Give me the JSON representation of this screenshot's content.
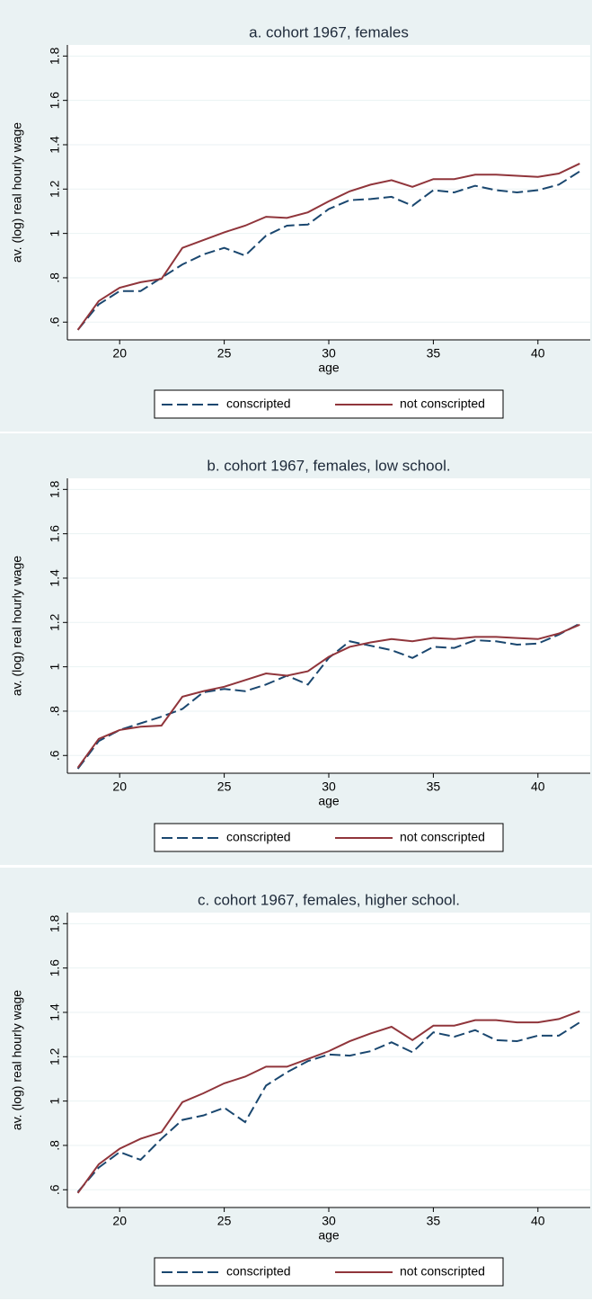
{
  "chart_data": [
    {
      "type": "line",
      "title": "a. cohort 1967, females",
      "xlabel": "age",
      "ylabel": "av. (log) real hourly wage",
      "x": [
        18,
        19,
        20,
        21,
        22,
        23,
        24,
        25,
        26,
        27,
        28,
        29,
        30,
        31,
        32,
        33,
        34,
        35,
        36,
        37,
        38,
        39,
        40,
        41,
        42
      ],
      "series": [
        {
          "name": "conscripted",
          "color": "#1a476f",
          "values": [
            0.565,
            0.68,
            0.74,
            0.74,
            0.8,
            0.86,
            0.905,
            0.935,
            0.9,
            0.99,
            1.035,
            1.04,
            1.11,
            1.15,
            1.155,
            1.165,
            1.125,
            1.195,
            1.185,
            1.215,
            1.195,
            1.185,
            1.195,
            1.22,
            1.28
          ]
        },
        {
          "name": "not conscripted",
          "color": "#90353b",
          "values": [
            0.565,
            0.695,
            0.755,
            0.78,
            0.795,
            0.935,
            0.97,
            1.005,
            1.035,
            1.075,
            1.07,
            1.095,
            1.145,
            1.19,
            1.22,
            1.24,
            1.21,
            1.245,
            1.245,
            1.265,
            1.265,
            1.26,
            1.255,
            1.27,
            1.315
          ]
        }
      ],
      "xlim": [
        17.5,
        42.5
      ],
      "ylim": [
        0.52,
        1.85
      ],
      "xticks": [
        20,
        25,
        30,
        35,
        40
      ],
      "yticks": [
        {
          "value": 0.6,
          "label": ".6"
        },
        {
          "value": 0.8,
          "label": ".8"
        },
        1,
        1.2,
        1.4,
        1.6,
        1.8
      ],
      "grid": true
    },
    {
      "type": "line",
      "title": "b. cohort 1967, females, low school.",
      "xlabel": "age",
      "ylabel": "av. (log) real hourly wage",
      "x": [
        18,
        19,
        20,
        21,
        22,
        23,
        24,
        25,
        26,
        27,
        28,
        29,
        30,
        31,
        32,
        33,
        34,
        35,
        36,
        37,
        38,
        39,
        40,
        41,
        42
      ],
      "series": [
        {
          "name": "conscripted",
          "color": "#1a476f",
          "values": [
            0.54,
            0.665,
            0.715,
            0.745,
            0.775,
            0.81,
            0.885,
            0.9,
            0.89,
            0.92,
            0.96,
            0.92,
            1.04,
            1.115,
            1.095,
            1.075,
            1.04,
            1.09,
            1.085,
            1.12,
            1.115,
            1.1,
            1.105,
            1.145,
            1.195
          ]
        },
        {
          "name": "not conscripted",
          "color": "#90353b",
          "values": [
            0.545,
            0.675,
            0.715,
            0.73,
            0.735,
            0.865,
            0.89,
            0.91,
            0.94,
            0.97,
            0.96,
            0.98,
            1.045,
            1.09,
            1.11,
            1.125,
            1.115,
            1.13,
            1.125,
            1.135,
            1.135,
            1.13,
            1.125,
            1.15,
            1.19
          ]
        }
      ],
      "xlim": [
        17.5,
        42.5
      ],
      "ylim": [
        0.52,
        1.85
      ],
      "xticks": [
        20,
        25,
        30,
        35,
        40
      ],
      "yticks": [
        {
          "value": 0.6,
          "label": ".6"
        },
        {
          "value": 0.8,
          "label": ".8"
        },
        1,
        1.2,
        1.4,
        1.6,
        1.8
      ],
      "grid": true
    },
    {
      "type": "line",
      "title": "c. cohort 1967, females, higher school.",
      "xlabel": "age",
      "ylabel": "av. (log) real hourly wage",
      "x": [
        18,
        19,
        20,
        21,
        22,
        23,
        24,
        25,
        26,
        27,
        28,
        29,
        30,
        31,
        32,
        33,
        34,
        35,
        36,
        37,
        38,
        39,
        40,
        41,
        42
      ],
      "series": [
        {
          "name": "conscripted",
          "color": "#1a476f",
          "values": [
            0.59,
            0.7,
            0.77,
            0.735,
            0.83,
            0.915,
            0.935,
            0.97,
            0.905,
            1.07,
            1.13,
            1.18,
            1.21,
            1.205,
            1.225,
            1.265,
            1.22,
            1.31,
            1.29,
            1.32,
            1.275,
            1.27,
            1.295,
            1.295,
            1.355
          ]
        },
        {
          "name": "not conscripted",
          "color": "#90353b",
          "values": [
            0.585,
            0.715,
            0.785,
            0.83,
            0.86,
            0.995,
            1.035,
            1.08,
            1.11,
            1.155,
            1.155,
            1.19,
            1.225,
            1.27,
            1.305,
            1.335,
            1.275,
            1.34,
            1.34,
            1.365,
            1.365,
            1.355,
            1.355,
            1.37,
            1.405
          ]
        }
      ],
      "xlim": [
        17.5,
        42.5
      ],
      "ylim": [
        0.52,
        1.85
      ],
      "xticks": [
        20,
        25,
        30,
        35,
        40
      ],
      "yticks": [
        {
          "value": 0.6,
          "label": ".6"
        },
        {
          "value": 0.8,
          "label": ".8"
        },
        1,
        1.2,
        1.4,
        1.6,
        1.8
      ],
      "grid": true
    }
  ]
}
